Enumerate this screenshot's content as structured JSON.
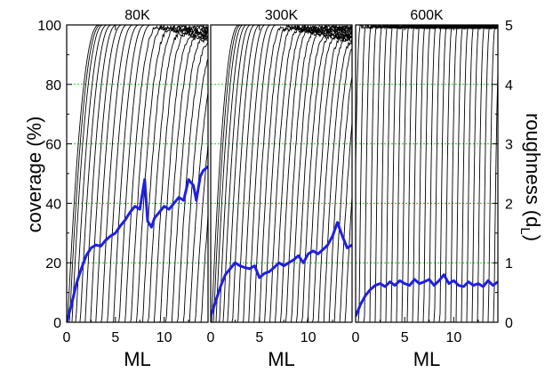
{
  "chart_data": [
    {
      "type": "line",
      "title": "80K",
      "xlabel": "ML",
      "xlim": [
        0,
        14.5
      ],
      "xticks": [
        0,
        5,
        10
      ],
      "coverage": {
        "ylim": [
          0,
          100
        ],
        "onset_ml": [
          0.1,
          0.3,
          0.55,
          0.95,
          1.4,
          1.9,
          2.45,
          3.0,
          3.6,
          4.2,
          4.8,
          5.4,
          6.0,
          6.6,
          7.2,
          7.8,
          8.4,
          9.0,
          9.6,
          10.2,
          10.8,
          11.4,
          12.0,
          12.6,
          13.2,
          13.8
        ],
        "saturation_pct": [
          100,
          100,
          100,
          100,
          100,
          100,
          100,
          100,
          100,
          100,
          100,
          100,
          99,
          99,
          98,
          98,
          97,
          97,
          96,
          96,
          95,
          94,
          92,
          90,
          88,
          86
        ],
        "rise_width_ml": 3.2
      },
      "roughness": {
        "name": "roughness",
        "color": "#1f1fe6",
        "points": [
          [
            0,
            0
          ],
          [
            0.5,
            0.3
          ],
          [
            1,
            0.65
          ],
          [
            1.5,
            0.9
          ],
          [
            2,
            1.12
          ],
          [
            2.5,
            1.25
          ],
          [
            3,
            1.3
          ],
          [
            3.5,
            1.28
          ],
          [
            4,
            1.38
          ],
          [
            4.5,
            1.45
          ],
          [
            5,
            1.5
          ],
          [
            5.5,
            1.62
          ],
          [
            6,
            1.72
          ],
          [
            6.5,
            1.85
          ],
          [
            7,
            1.95
          ],
          [
            7.5,
            1.9
          ],
          [
            8,
            2.4
          ],
          [
            8.3,
            1.7
          ],
          [
            8.7,
            1.6
          ],
          [
            9,
            1.75
          ],
          [
            9.5,
            1.85
          ],
          [
            10,
            1.95
          ],
          [
            10.5,
            1.9
          ],
          [
            11,
            2.0
          ],
          [
            11.5,
            2.1
          ],
          [
            12,
            2.05
          ],
          [
            12.5,
            2.4
          ],
          [
            13,
            2.3
          ],
          [
            13.3,
            2.05
          ],
          [
            13.7,
            2.45
          ],
          [
            14,
            2.55
          ],
          [
            14.5,
            2.62
          ]
        ]
      }
    },
    {
      "type": "line",
      "title": "300K",
      "xlabel": "ML",
      "xlim": [
        0,
        14.5
      ],
      "xticks": [
        0,
        5,
        10
      ],
      "coverage": {
        "ylim": [
          0,
          100
        ],
        "onset_ml": [
          0.1,
          0.3,
          0.55,
          0.9,
          1.3,
          1.75,
          2.25,
          2.8,
          3.35,
          3.9,
          4.45,
          5.0,
          5.55,
          6.1,
          6.65,
          7.2,
          7.75,
          8.3,
          8.85,
          9.4,
          9.95,
          10.5,
          11.05,
          11.6,
          12.15,
          12.7,
          13.25,
          13.8
        ],
        "saturation_pct": [
          100,
          100,
          100,
          100,
          100,
          100,
          100,
          100,
          100,
          100,
          99,
          99,
          99,
          98,
          98,
          98,
          97,
          97,
          96,
          96,
          96,
          95,
          95,
          94,
          94,
          93,
          92,
          90
        ],
        "rise_width_ml": 2.8
      },
      "roughness": {
        "name": "roughness",
        "color": "#1f1fe6",
        "points": [
          [
            0,
            0.1
          ],
          [
            0.5,
            0.35
          ],
          [
            1,
            0.6
          ],
          [
            1.5,
            0.8
          ],
          [
            2,
            0.9
          ],
          [
            2.5,
            1.0
          ],
          [
            3,
            0.95
          ],
          [
            3.5,
            0.92
          ],
          [
            4,
            0.9
          ],
          [
            4.5,
            0.95
          ],
          [
            5,
            0.75
          ],
          [
            5.5,
            0.82
          ],
          [
            6,
            0.85
          ],
          [
            6.5,
            0.92
          ],
          [
            7,
            1.0
          ],
          [
            7.5,
            0.95
          ],
          [
            8,
            1.0
          ],
          [
            8.5,
            1.05
          ],
          [
            9,
            1.12
          ],
          [
            9.5,
            1.0
          ],
          [
            10,
            1.15
          ],
          [
            10.5,
            1.2
          ],
          [
            11,
            1.15
          ],
          [
            11.5,
            1.22
          ],
          [
            12,
            1.3
          ],
          [
            12.5,
            1.45
          ],
          [
            13,
            1.68
          ],
          [
            13.5,
            1.45
          ],
          [
            14,
            1.25
          ],
          [
            14.5,
            1.3
          ]
        ]
      }
    },
    {
      "type": "line",
      "title": "600K",
      "xlabel": "ML",
      "xlim": [
        0,
        14.5
      ],
      "xticks": [
        0,
        5,
        10
      ],
      "coverage": {
        "ylim": [
          0,
          100
        ],
        "onset_ml": [
          -0.2,
          0.35,
          0.9,
          1.45,
          2.0,
          2.55,
          3.1,
          3.65,
          4.2,
          4.75,
          5.3,
          5.85,
          6.4,
          6.95,
          7.5,
          8.05,
          8.6,
          9.15,
          9.7,
          10.25,
          10.8,
          11.35,
          11.9,
          12.45,
          13.0,
          13.55,
          14.1
        ],
        "saturation_pct": [
          100,
          100,
          100,
          100,
          100,
          100,
          100,
          100,
          100,
          100,
          100,
          100,
          100,
          100,
          100,
          100,
          100,
          100,
          100,
          100,
          100,
          100,
          100,
          100,
          100,
          100,
          100
        ],
        "rise_width_ml": 0.7
      },
      "roughness": {
        "name": "roughness",
        "color": "#1f1fe6",
        "points": [
          [
            0,
            0.1
          ],
          [
            0.5,
            0.3
          ],
          [
            1,
            0.45
          ],
          [
            1.5,
            0.55
          ],
          [
            2,
            0.62
          ],
          [
            2.5,
            0.65
          ],
          [
            3,
            0.6
          ],
          [
            3.5,
            0.68
          ],
          [
            4,
            0.62
          ],
          [
            4.5,
            0.7
          ],
          [
            5,
            0.65
          ],
          [
            5.5,
            0.62
          ],
          [
            6,
            0.72
          ],
          [
            6.5,
            0.65
          ],
          [
            7,
            0.68
          ],
          [
            7.5,
            0.72
          ],
          [
            8,
            0.62
          ],
          [
            8.5,
            0.7
          ],
          [
            9,
            0.8
          ],
          [
            9.5,
            0.65
          ],
          [
            10,
            0.7
          ],
          [
            10.5,
            0.62
          ],
          [
            11,
            0.6
          ],
          [
            11.5,
            0.68
          ],
          [
            12,
            0.62
          ],
          [
            12.5,
            0.65
          ],
          [
            13,
            0.6
          ],
          [
            13.5,
            0.7
          ],
          [
            14,
            0.62
          ],
          [
            14.5,
            0.68
          ]
        ]
      }
    }
  ],
  "axes": {
    "left_label": "coverage (%)",
    "right_label": "roughness (d",
    "right_label_sub": "L",
    "right_label_close": ")",
    "left_ticks": [
      0,
      20,
      40,
      60,
      80,
      100
    ],
    "right_ticks": [
      0,
      1,
      2,
      3,
      4,
      5
    ],
    "right_ylim": [
      0,
      5
    ],
    "grid": "dotted horizontal at coverage 20/40/60/80",
    "grid_color": "#22cc22",
    "coverage_line_color": "#000000"
  }
}
